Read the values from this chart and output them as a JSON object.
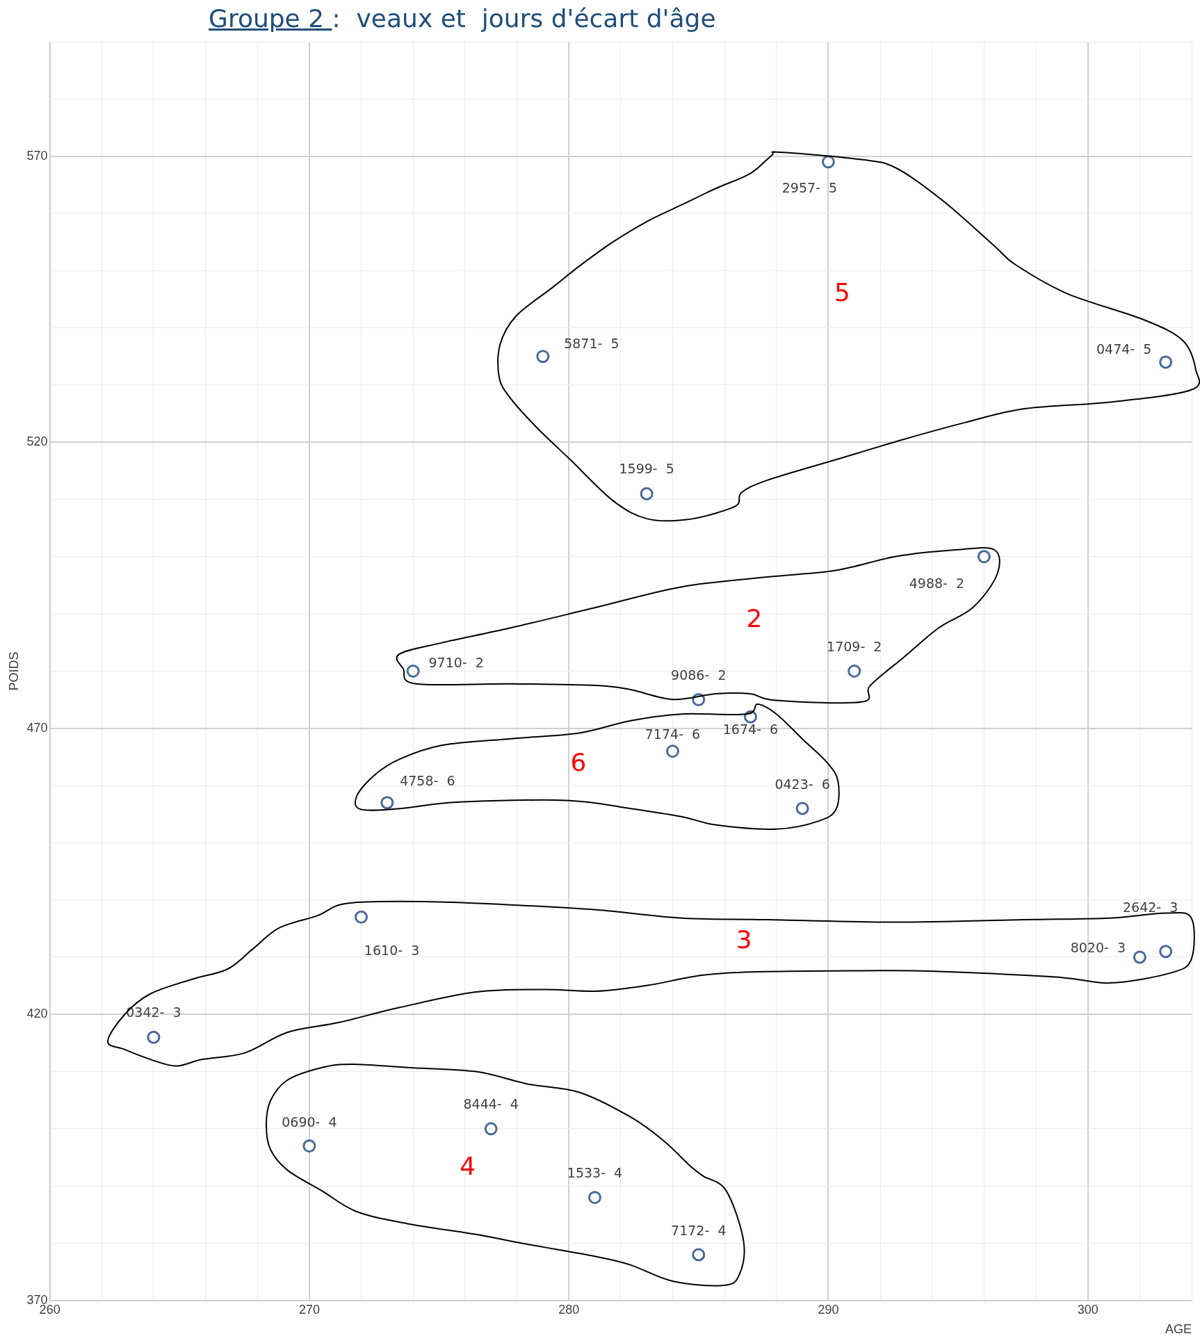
{
  "chart_data": {
    "type": "scatter",
    "title": "Groupe 2 :  veaux et  jours d'écart d'âge",
    "xlabel": "AGE",
    "ylabel": "POIDS",
    "xlim": [
      260,
      304
    ],
    "ylim": [
      370,
      590
    ],
    "xticks": [
      260,
      {
        "value": 262,
        "label": null
      },
      {
        "value": 264,
        "label": null
      },
      {
        "value": 266,
        "label": null
      },
      {
        "value": 268,
        "label": null
      },
      270,
      {
        "value": 272,
        "label": null
      },
      {
        "value": 274,
        "label": null
      },
      {
        "value": 276,
        "label": null
      },
      {
        "value": 278,
        "label": null
      },
      280,
      {
        "value": 282,
        "label": null
      },
      {
        "value": 284,
        "label": null
      },
      {
        "value": 286,
        "label": null
      },
      {
        "value": 288,
        "label": null
      },
      290,
      {
        "value": 292,
        "label": null
      },
      {
        "value": 294,
        "label": null
      },
      {
        "value": 296,
        "label": null
      },
      {
        "value": 298,
        "label": null
      },
      300,
      {
        "value": 302,
        "label": null
      },
      {
        "value": 304,
        "label": null
      }
    ],
    "yticks": [
      370,
      {
        "value": 380,
        "label": null
      },
      {
        "value": 390,
        "label": null
      },
      {
        "value": 400,
        "label": null
      },
      {
        "value": 410,
        "label": null
      },
      420,
      {
        "value": 430,
        "label": null
      },
      {
        "value": 440,
        "label": null
      },
      {
        "value": 450,
        "label": null
      },
      {
        "value": 460,
        "label": null
      },
      470,
      {
        "value": 480,
        "label": null
      },
      {
        "value": 490,
        "label": null
      },
      {
        "value": 500,
        "label": null
      },
      {
        "value": 510,
        "label": null
      },
      520,
      {
        "value": 530,
        "label": null
      },
      {
        "value": 540,
        "label": null
      },
      {
        "value": 550,
        "label": null
      },
      {
        "value": 560,
        "label": null
      },
      570,
      {
        "value": 580,
        "label": null
      },
      {
        "value": 590,
        "label": null
      }
    ],
    "grid": true,
    "legend": false,
    "marker": "circle",
    "series": [
      {
        "color": "#4a6a9a",
        "x": [
          290,
          279,
          303,
          283,
          296,
          274,
          291,
          285,
          287,
          284,
          273,
          289,
          272,
          302,
          303,
          264,
          270,
          277,
          281,
          285
        ],
        "values": [
          569,
          535,
          534,
          511,
          500,
          480,
          480,
          475,
          472,
          466,
          457,
          456,
          437,
          430,
          431,
          416,
          397,
          400,
          388,
          378
        ],
        "value_labels": [
          "2957-  5",
          "5871-  5",
          "0474-  5",
          "1599-  5",
          "4988-  2",
          "9710-  2",
          "1709-  2",
          "9086-  2",
          "1674-  6",
          "7174-  6",
          "4758-  6",
          "0423-  6",
          "1610-  3",
          "8020-  3",
          "2642-  3",
          "0342-  3",
          "0690-  4",
          "8444-  4",
          "1533-  4",
          "7172-  4"
        ]
      }
    ],
    "annotations": [
      "5",
      "2",
      "6",
      "3",
      "4"
    ]
  }
}
